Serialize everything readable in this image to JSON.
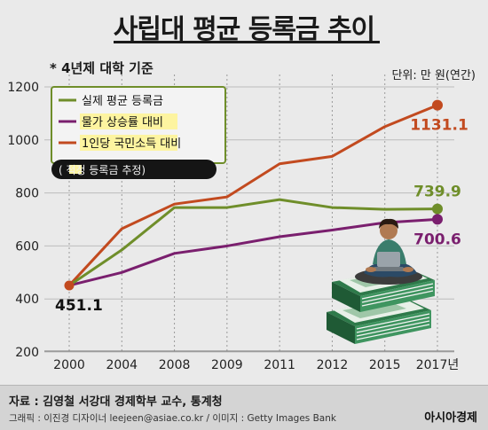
{
  "title": "사립대 평균 등록금 추이",
  "subnote": "* 4년제 대학 기준",
  "unit": "단위: 만 원(연간)",
  "chart_data": {
    "type": "line",
    "categories": [
      "2000",
      "2004",
      "2008",
      "2009",
      "2011",
      "2012",
      "2015",
      "2017년"
    ],
    "ylim": [
      150,
      1200
    ],
    "yticks": [
      200,
      400,
      600,
      800,
      1000,
      1200
    ],
    "series": [
      {
        "name": "실제 평균 등록금",
        "color": "#6f8e2a",
        "values": [
          451.1,
          585,
          745,
          745,
          775,
          745,
          738,
          739.9
        ]
      },
      {
        "name": "물가 상승률 대비",
        "color": "#7a1f6e",
        "values": [
          451.1,
          500,
          572,
          600,
          635,
          660,
          688,
          700.6
        ]
      },
      {
        "name": "1인당 국민소득 대비",
        "color": "#c24a1f",
        "values": [
          451.1,
          665,
          758,
          785,
          910,
          938,
          1050,
          1131.1
        ]
      }
    ],
    "legend_extra": "( 적정 등록금 추정)",
    "start_label": "451.1",
    "end_labels": [
      "739.9",
      "700.6",
      "1131.1"
    ],
    "grid": true,
    "legend_position": "top-left"
  },
  "footer": {
    "source": "자료 : 김영철 서강대 경제학부 교수, 통계청",
    "credit": "그래픽 : 이진경 디자이너 leejeen@asiae.co.kr  / 이미지 : Getty Images Bank",
    "brand": "아시아경제"
  }
}
